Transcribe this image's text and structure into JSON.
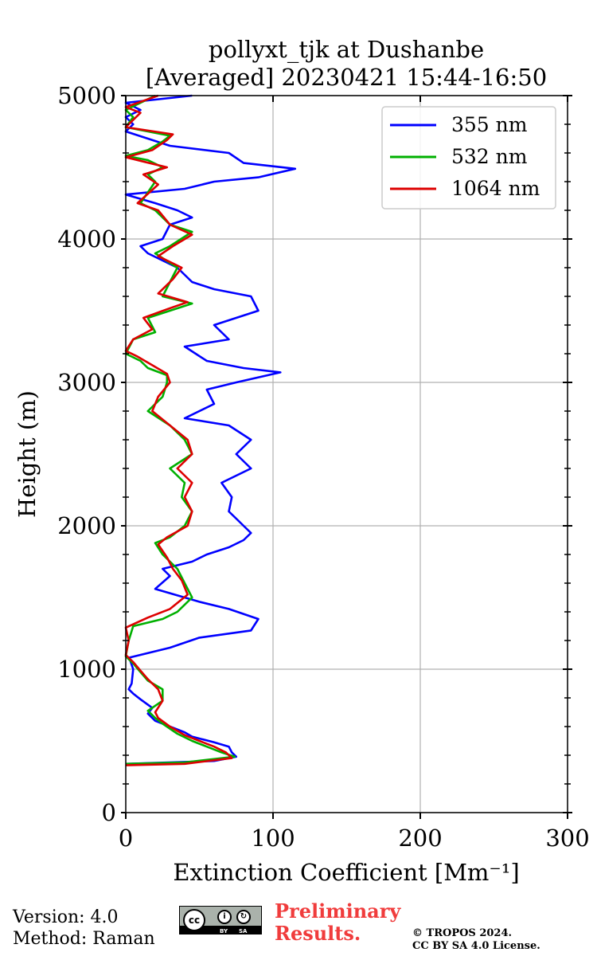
{
  "chart_data": {
    "type": "line",
    "title": [
      "pollyxt_tjk at Dushanbe",
      "[Averaged] 20230421 15:44-16:50"
    ],
    "xlabel": "Extinction Coefficient [Mm⁻¹]",
    "ylabel": "Height (m)",
    "xlim": [
      0,
      300
    ],
    "ylim": [
      0,
      5000
    ],
    "xticks": [
      0,
      100,
      200,
      300
    ],
    "xtick_labels": [
      "0",
      "100",
      "200",
      "300"
    ],
    "yticks": [
      0,
      1000,
      2000,
      3000,
      4000,
      5000
    ],
    "ytick_labels": [
      "0",
      "1000",
      "2000",
      "3000",
      "4000",
      "5000"
    ],
    "grid": true,
    "legend": "top-right",
    "series": [
      {
        "name": "355 nm",
        "color": "#0000ff",
        "points": [
          [
            0,
            340
          ],
          [
            60,
            360
          ],
          [
            75,
            390
          ],
          [
            72,
            420
          ],
          [
            70,
            460
          ],
          [
            60,
            490
          ],
          [
            45,
            530
          ],
          [
            40,
            560
          ],
          [
            30,
            600
          ],
          [
            20,
            640
          ],
          [
            15,
            690
          ],
          [
            18,
            730
          ],
          [
            10,
            790
          ],
          [
            5,
            830
          ],
          [
            2,
            860
          ],
          [
            4,
            900
          ],
          [
            5,
            1000
          ],
          [
            3,
            1060
          ],
          [
            2,
            1080
          ],
          [
            30,
            1150
          ],
          [
            50,
            1220
          ],
          [
            85,
            1270
          ],
          [
            90,
            1350
          ],
          [
            70,
            1420
          ],
          [
            50,
            1470
          ],
          [
            40,
            1500
          ],
          [
            20,
            1560
          ],
          [
            30,
            1650
          ],
          [
            25,
            1700
          ],
          [
            45,
            1750
          ],
          [
            55,
            1800
          ],
          [
            70,
            1850
          ],
          [
            80,
            1900
          ],
          [
            85,
            1950
          ],
          [
            80,
            2000
          ],
          [
            75,
            2050
          ],
          [
            70,
            2100
          ],
          [
            72,
            2200
          ],
          [
            65,
            2300
          ],
          [
            85,
            2400
          ],
          [
            75,
            2500
          ],
          [
            80,
            2550
          ],
          [
            85,
            2600
          ],
          [
            70,
            2700
          ],
          [
            40,
            2750
          ],
          [
            60,
            2850
          ],
          [
            55,
            2950
          ],
          [
            75,
            3000
          ],
          [
            105,
            3070
          ],
          [
            80,
            3100
          ],
          [
            55,
            3150
          ],
          [
            40,
            3250
          ],
          [
            70,
            3300
          ],
          [
            60,
            3400
          ],
          [
            90,
            3500
          ],
          [
            85,
            3600
          ],
          [
            60,
            3650
          ],
          [
            45,
            3700
          ],
          [
            35,
            3800
          ],
          [
            25,
            3850
          ],
          [
            15,
            3900
          ],
          [
            10,
            3950
          ],
          [
            25,
            4000
          ],
          [
            30,
            4100
          ],
          [
            45,
            4150
          ],
          [
            35,
            4200
          ],
          [
            20,
            4250
          ],
          [
            0,
            4310
          ],
          [
            40,
            4350
          ],
          [
            60,
            4400
          ],
          [
            90,
            4430
          ],
          [
            115,
            4490
          ],
          [
            80,
            4530
          ],
          [
            70,
            4600
          ],
          [
            30,
            4650
          ],
          [
            15,
            4700
          ],
          [
            0,
            4750
          ],
          [
            5,
            4800
          ],
          [
            0,
            4850
          ],
          [
            10,
            4900
          ],
          [
            0,
            4950
          ],
          [
            45,
            5000
          ]
        ]
      },
      {
        "name": "532 nm",
        "color": "#00b000",
        "points": [
          [
            0,
            340
          ],
          [
            40,
            350
          ],
          [
            74,
            390
          ],
          [
            65,
            420
          ],
          [
            55,
            460
          ],
          [
            45,
            500
          ],
          [
            35,
            550
          ],
          [
            25,
            620
          ],
          [
            20,
            660
          ],
          [
            15,
            710
          ],
          [
            25,
            780
          ],
          [
            25,
            860
          ],
          [
            15,
            920
          ],
          [
            10,
            980
          ],
          [
            5,
            1040
          ],
          [
            0,
            1090
          ],
          [
            2,
            1200
          ],
          [
            5,
            1300
          ],
          [
            25,
            1350
          ],
          [
            35,
            1400
          ],
          [
            45,
            1500
          ],
          [
            40,
            1600
          ],
          [
            35,
            1700
          ],
          [
            25,
            1800
          ],
          [
            20,
            1880
          ],
          [
            30,
            1920
          ],
          [
            40,
            2000
          ],
          [
            45,
            2100
          ],
          [
            38,
            2200
          ],
          [
            40,
            2300
          ],
          [
            30,
            2400
          ],
          [
            45,
            2500
          ],
          [
            40,
            2600
          ],
          [
            30,
            2700
          ],
          [
            15,
            2800
          ],
          [
            25,
            2900
          ],
          [
            28,
            3000
          ],
          [
            28,
            3050
          ],
          [
            15,
            3100
          ],
          [
            10,
            3150
          ],
          [
            0,
            3200
          ],
          [
            5,
            3300
          ],
          [
            20,
            3350
          ],
          [
            15,
            3450
          ],
          [
            30,
            3500
          ],
          [
            45,
            3550
          ],
          [
            25,
            3600
          ],
          [
            30,
            3700
          ],
          [
            35,
            3800
          ],
          [
            20,
            3900
          ],
          [
            30,
            3950
          ],
          [
            45,
            4050
          ],
          [
            30,
            4100
          ],
          [
            20,
            4200
          ],
          [
            10,
            4250
          ],
          [
            20,
            4400
          ],
          [
            15,
            4450
          ],
          [
            25,
            4500
          ],
          [
            15,
            4550
          ],
          [
            0,
            4580
          ],
          [
            15,
            4620
          ],
          [
            25,
            4680
          ],
          [
            30,
            4720
          ],
          [
            0,
            4780
          ],
          [
            5,
            4850
          ],
          [
            0,
            4900
          ],
          [
            20,
            5000
          ]
        ]
      },
      {
        "name": "1064 nm",
        "color": "#dd0000",
        "points": [
          [
            0,
            330
          ],
          [
            40,
            340
          ],
          [
            72,
            380
          ],
          [
            68,
            420
          ],
          [
            60,
            460
          ],
          [
            50,
            500
          ],
          [
            40,
            540
          ],
          [
            30,
            600
          ],
          [
            22,
            660
          ],
          [
            20,
            700
          ],
          [
            25,
            780
          ],
          [
            22,
            860
          ],
          [
            15,
            930
          ],
          [
            10,
            990
          ],
          [
            5,
            1050
          ],
          [
            0,
            1100
          ],
          [
            2,
            1200
          ],
          [
            0,
            1290
          ],
          [
            15,
            1360
          ],
          [
            30,
            1420
          ],
          [
            42,
            1520
          ],
          [
            38,
            1620
          ],
          [
            32,
            1700
          ],
          [
            28,
            1780
          ],
          [
            22,
            1870
          ],
          [
            28,
            1920
          ],
          [
            42,
            2000
          ],
          [
            45,
            2100
          ],
          [
            40,
            2200
          ],
          [
            45,
            2300
          ],
          [
            35,
            2400
          ],
          [
            45,
            2500
          ],
          [
            42,
            2600
          ],
          [
            30,
            2700
          ],
          [
            18,
            2800
          ],
          [
            22,
            2900
          ],
          [
            30,
            3000
          ],
          [
            28,
            3060
          ],
          [
            18,
            3120
          ],
          [
            8,
            3180
          ],
          [
            0,
            3220
          ],
          [
            5,
            3300
          ],
          [
            18,
            3370
          ],
          [
            12,
            3450
          ],
          [
            28,
            3510
          ],
          [
            42,
            3560
          ],
          [
            22,
            3620
          ],
          [
            32,
            3720
          ],
          [
            38,
            3800
          ],
          [
            22,
            3880
          ],
          [
            32,
            3950
          ],
          [
            45,
            4030
          ],
          [
            30,
            4100
          ],
          [
            22,
            4200
          ],
          [
            8,
            4250
          ],
          [
            22,
            4380
          ],
          [
            12,
            4450
          ],
          [
            28,
            4500
          ],
          [
            12,
            4540
          ],
          [
            0,
            4570
          ],
          [
            18,
            4620
          ],
          [
            28,
            4690
          ],
          [
            32,
            4730
          ],
          [
            0,
            4780
          ],
          [
            10,
            4880
          ],
          [
            0,
            4920
          ],
          [
            22,
            5000
          ]
        ]
      }
    ]
  },
  "footer": {
    "version": "Version: 4.0",
    "method": "Method: Raman",
    "preliminary_line1": "Preliminary",
    "preliminary_line2": "Results.",
    "copyright_line1": "© TROPOS 2024.",
    "copyright_line2": "CC BY SA 4.0 License.",
    "license_badge": {
      "cc": "cc",
      "by": "BY",
      "sa": "SA"
    }
  }
}
